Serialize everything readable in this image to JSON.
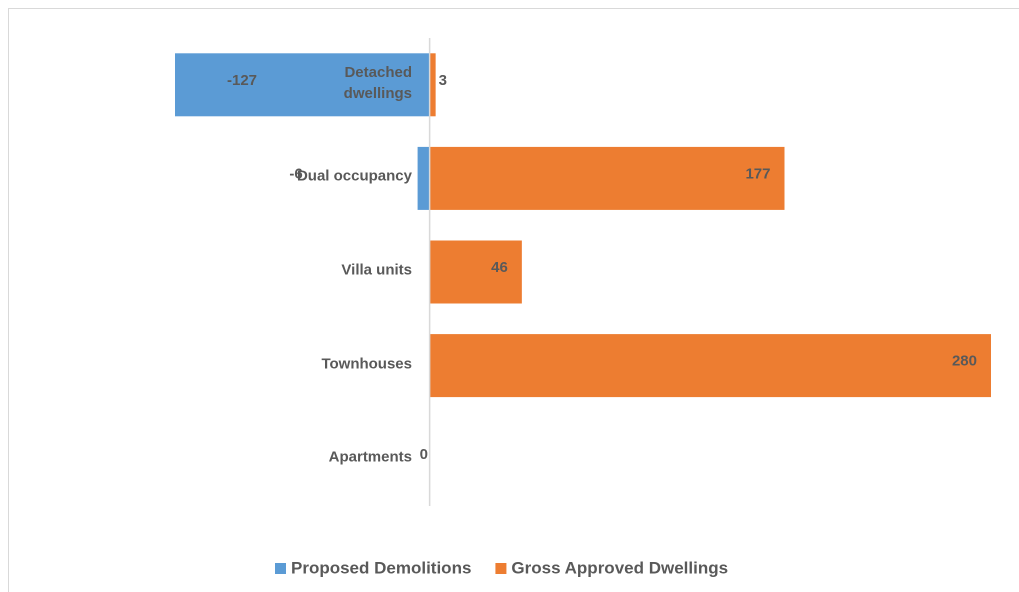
{
  "chart_data": {
    "type": "bar",
    "orientation": "horizontal",
    "categories": [
      "Detached dwellings",
      "Dual occupancy",
      "Villa units",
      "Townhouses",
      "Apartments"
    ],
    "series": [
      {
        "name": "Proposed Demolitions",
        "color": "#5b9bd5",
        "values": [
          -127,
          -6,
          0,
          0,
          0
        ]
      },
      {
        "name": "Gross Approved Dwellings",
        "color": "#ed7d31",
        "values": [
          3,
          177,
          46,
          280,
          0
        ]
      }
    ],
    "xlim": [
      -127,
      280
    ],
    "legend": "bottom"
  }
}
